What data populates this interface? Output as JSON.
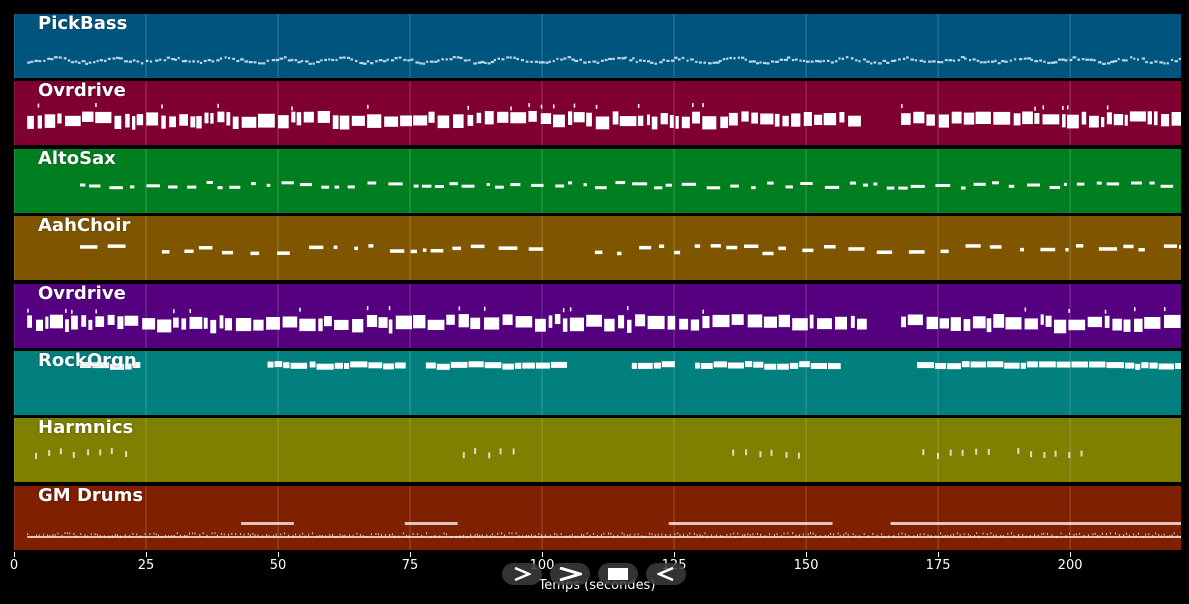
{
  "chart_data": {
    "type": "piano-roll",
    "xlabel": "Temps (secondes)",
    "xlim": [
      0,
      221
    ],
    "xticks": [
      0,
      25,
      50,
      75,
      100,
      125,
      150,
      175,
      200
    ],
    "tracks": [
      {
        "name": "PickBass",
        "color": "#00557f",
        "pattern": "bass",
        "segments": [
          [
            2.5,
            221
          ]
        ]
      },
      {
        "name": "Ovrdrive",
        "color": "#7f0030",
        "pattern": "dense",
        "segments": [
          [
            2.5,
            160
          ],
          [
            168,
            221
          ]
        ]
      },
      {
        "name": "AltoSax",
        "color": "#007f20",
        "pattern": "sparse",
        "segments": [
          [
            12.5,
            221
          ]
        ]
      },
      {
        "name": "AahChoir",
        "color": "#7f5500",
        "pattern": "phrase",
        "segments": [
          [
            12.5,
            23
          ],
          [
            28,
            101
          ],
          [
            110,
            221
          ]
        ]
      },
      {
        "name": "Ovrdrive",
        "color": "#55007f",
        "pattern": "dense",
        "segments": [
          [
            2.5,
            160
          ],
          [
            168,
            221
          ]
        ]
      },
      {
        "name": "RockOrgn",
        "color": "#007f7f",
        "pattern": "organ",
        "segments": [
          [
            12.5,
            23
          ],
          [
            48,
            53
          ],
          [
            56,
            73
          ],
          [
            78,
            104
          ],
          [
            117,
            123
          ],
          [
            129,
            155
          ],
          [
            171,
            221
          ]
        ]
      },
      {
        "name": "Harmnics",
        "color": "#7f7f00",
        "pattern": "accent",
        "segments": [
          [
            4,
            23
          ],
          [
            85,
            96
          ],
          [
            136,
            149
          ],
          [
            172,
            185
          ],
          [
            190,
            204
          ]
        ]
      },
      {
        "name": "GM Drums",
        "color": "#7f2000",
        "pattern": "drums",
        "segments": [
          [
            2.5,
            221
          ]
        ]
      }
    ]
  },
  "controls": {
    "play": "play-icon",
    "fast_forward": "fast-forward-icon",
    "stop": "stop-icon",
    "rewind": "rewind-icon"
  }
}
